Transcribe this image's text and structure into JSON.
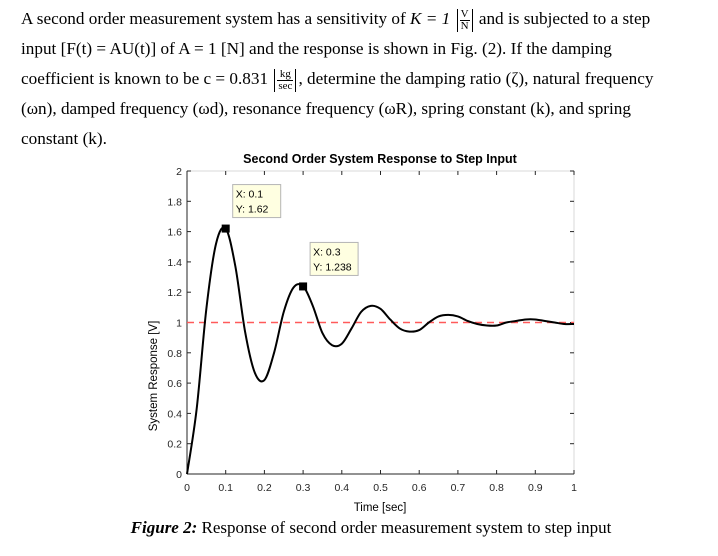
{
  "problem": {
    "line1_a": "A second order measurement system has a sensitivity of ",
    "line1_k": "K = 1 ",
    "line1_frac_num": "V",
    "line1_frac_den": "N",
    "line1_b": " and is subjected to a step",
    "line2": "input [F(t) = AU(t)] of A = 1 [N] and the response is shown in Fig. (2). If the damping",
    "line3_a": "coefficient is known to be c = 0.831 ",
    "line3_frac_num": "kg",
    "line3_frac_den": "sec",
    "line3_b": ", determine the damping ratio (ζ), natural frequency",
    "line4": "(ωn), damped frequency (ωd), resonance frequency (ωR), spring constant (k), and spring",
    "line5": "constant (k)."
  },
  "caption": {
    "label": "Figure 2:",
    "text": " Response of second order measurement system to step input"
  },
  "chart_data": {
    "type": "line",
    "title": "Second Order System Response to Step Input",
    "xlabel": "Time [sec]",
    "ylabel": "System Response [V]",
    "xlim": [
      0,
      1
    ],
    "ylim": [
      0,
      2
    ],
    "xticks": [
      0,
      0.1,
      0.2,
      0.3,
      0.4,
      0.5,
      0.6,
      0.7,
      0.8,
      0.9,
      1
    ],
    "xtick_labels": [
      "0",
      "0.1",
      "0.2",
      "0.3",
      "0.4",
      "0.5",
      "0.6",
      "0.7",
      "0.8",
      "0.9",
      "1"
    ],
    "yticks": [
      0,
      0.2,
      0.4,
      0.6,
      0.8,
      1,
      1.2,
      1.4,
      1.6,
      1.8,
      2
    ],
    "ytick_labels": [
      "0",
      "0.2",
      "0.4",
      "0.6",
      "0.8",
      "1",
      "1.2",
      "1.4",
      "1.6",
      "1.8",
      "2"
    ],
    "grid": false,
    "series": [
      {
        "color": "#000000",
        "x": [
          0,
          0.025,
          0.05,
          0.075,
          0.1,
          0.125,
          0.15,
          0.175,
          0.2,
          0.225,
          0.25,
          0.275,
          0.3,
          0.325,
          0.35,
          0.375,
          0.4,
          0.425,
          0.45,
          0.475,
          0.5,
          0.525,
          0.55,
          0.575,
          0.6,
          0.625,
          0.65,
          0.675,
          0.7,
          0.725,
          0.75,
          0.775,
          0.8,
          0.825,
          0.85,
          0.875,
          0.9,
          0.925,
          0.95,
          0.975,
          1
        ],
        "y": [
          0,
          0.43,
          1.09,
          1.52,
          1.62,
          1.37,
          0.94,
          0.67,
          0.62,
          0.8,
          1.07,
          1.23,
          1.24,
          1.11,
          0.93,
          0.85,
          0.86,
          0.96,
          1.07,
          1.11,
          1.09,
          1.02,
          0.96,
          0.94,
          0.95,
          1,
          1.04,
          1.05,
          1.04,
          1.01,
          0.99,
          0.98,
          0.98,
          1,
          1.01,
          1.02,
          1.02,
          1.01,
          1,
          0.99,
          0.99
        ]
      },
      {
        "color": "#ff5a5a",
        "style": "dashed",
        "x": [
          0,
          1
        ],
        "y": [
          1,
          1
        ]
      }
    ],
    "annotations": [
      {
        "x": 0.1,
        "y": 1.62,
        "line1": "X: 0.1",
        "line2": "Y: 1.62"
      },
      {
        "x": 0.3,
        "y": 1.238,
        "line1": "X: 0.3",
        "line2": "Y: 1.238"
      }
    ]
  }
}
